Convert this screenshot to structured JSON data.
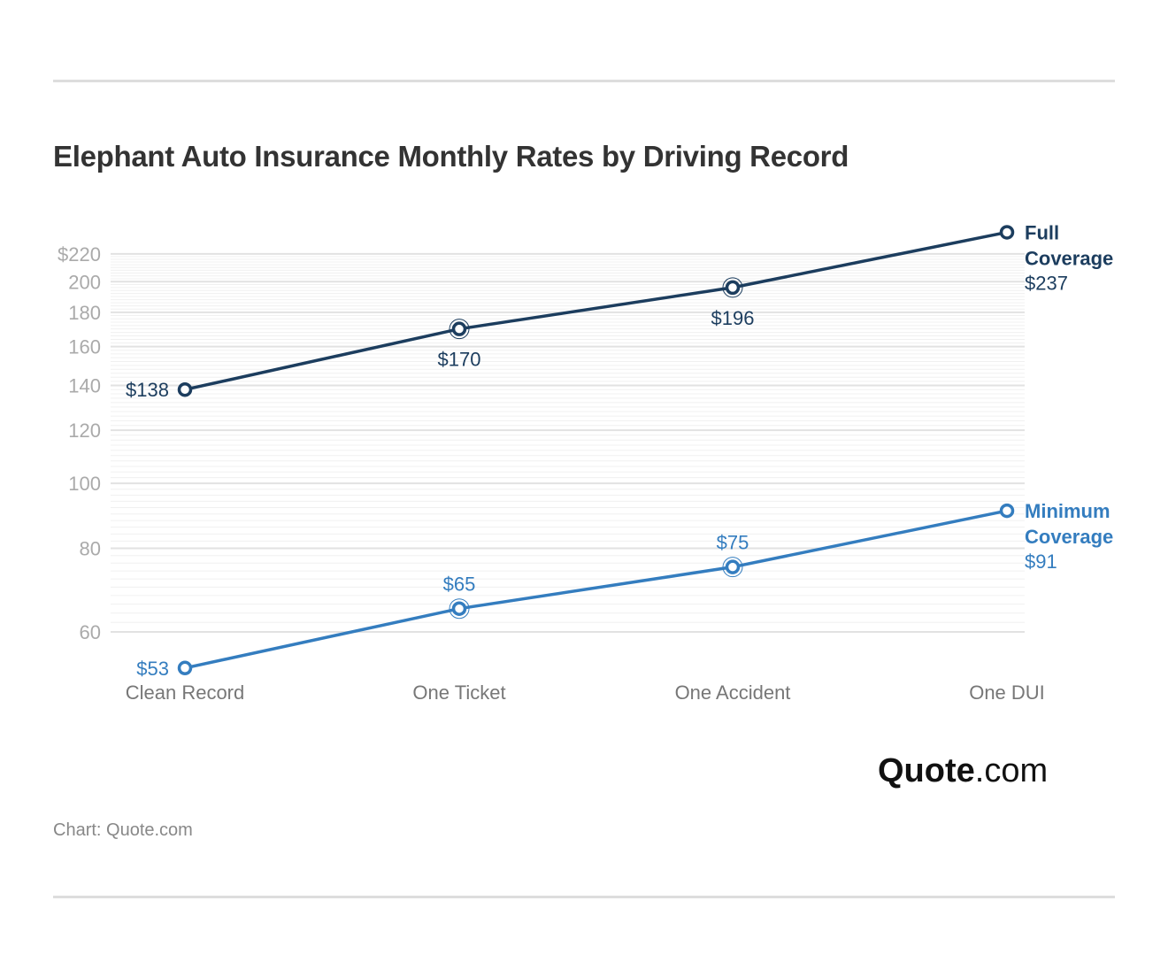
{
  "title": "Elephant Auto Insurance Monthly Rates by Driving Record",
  "source": "Chart: Quote.com",
  "logo": {
    "bold": "Quote",
    "rest": ".com"
  },
  "chart_data": {
    "type": "line",
    "title": "Elephant Auto Insurance Monthly Rates by Driving Record",
    "categories": [
      "Clean Record",
      "One Ticket",
      "One Accident",
      "One DUI"
    ],
    "y_scale": "log",
    "ylim": [
      60,
      220
    ],
    "y_ticks": [
      60,
      80,
      100,
      120,
      140,
      160,
      180,
      200,
      220
    ],
    "y_tick_labels": [
      "60",
      "80",
      "100",
      "120",
      "140",
      "160",
      "180",
      "200",
      "$220"
    ],
    "grid": true,
    "legend": "inline-right",
    "series": [
      {
        "name": "Full Coverage",
        "name_lines": [
          "Full",
          "Coverage"
        ],
        "color": "#1c3d5e",
        "values": [
          138,
          170,
          196,
          237
        ],
        "labels": [
          "$138",
          "$170",
          "$196",
          "$237"
        ]
      },
      {
        "name": "Minimum Coverage",
        "name_lines": [
          "Minimum",
          "Coverage"
        ],
        "color": "#347dbf",
        "values": [
          53,
          65,
          75,
          91
        ],
        "labels": [
          "$53",
          "$65",
          "$75",
          "$91"
        ]
      }
    ]
  }
}
